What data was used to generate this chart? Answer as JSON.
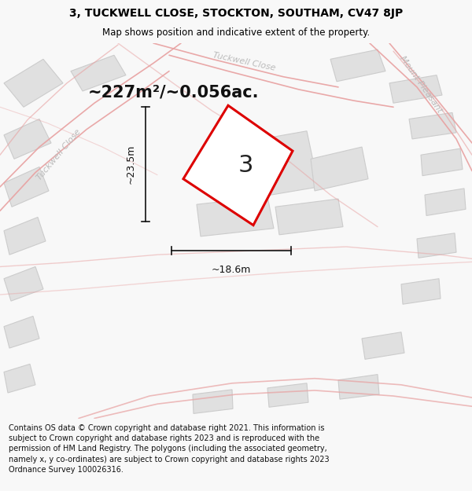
{
  "title_line1": "3, TUCKWELL CLOSE, STOCKTON, SOUTHAM, CV47 8JP",
  "title_line2": "Map shows position and indicative extent of the property.",
  "area_text": "~227m²/~0.056ac.",
  "label_number": "3",
  "dim_height": "~23.5m",
  "dim_width": "~18.6m",
  "footer_text": "Contains OS data © Crown copyright and database right 2021. This information is subject to Crown copyright and database rights 2023 and is reproduced with the permission of HM Land Registry. The polygons (including the associated geometry, namely x, y co-ordinates) are subject to Crown copyright and database rights 2023 Ordnance Survey 100026316.",
  "bg_color": "#f8f8f8",
  "map_bg": "#f9f9f9",
  "plot_color": "#dd0000",
  "plot_fill": "#f0f0f0",
  "street_color": "#e8a0a0",
  "building_color": "#e0e0e0",
  "building_edge": "#cccccc",
  "road_label_color": "#bbbbbb",
  "title_bg": "#ffffff",
  "footer_bg": "#ffffff",
  "dim_color": "#111111",
  "label_color": "#222222"
}
